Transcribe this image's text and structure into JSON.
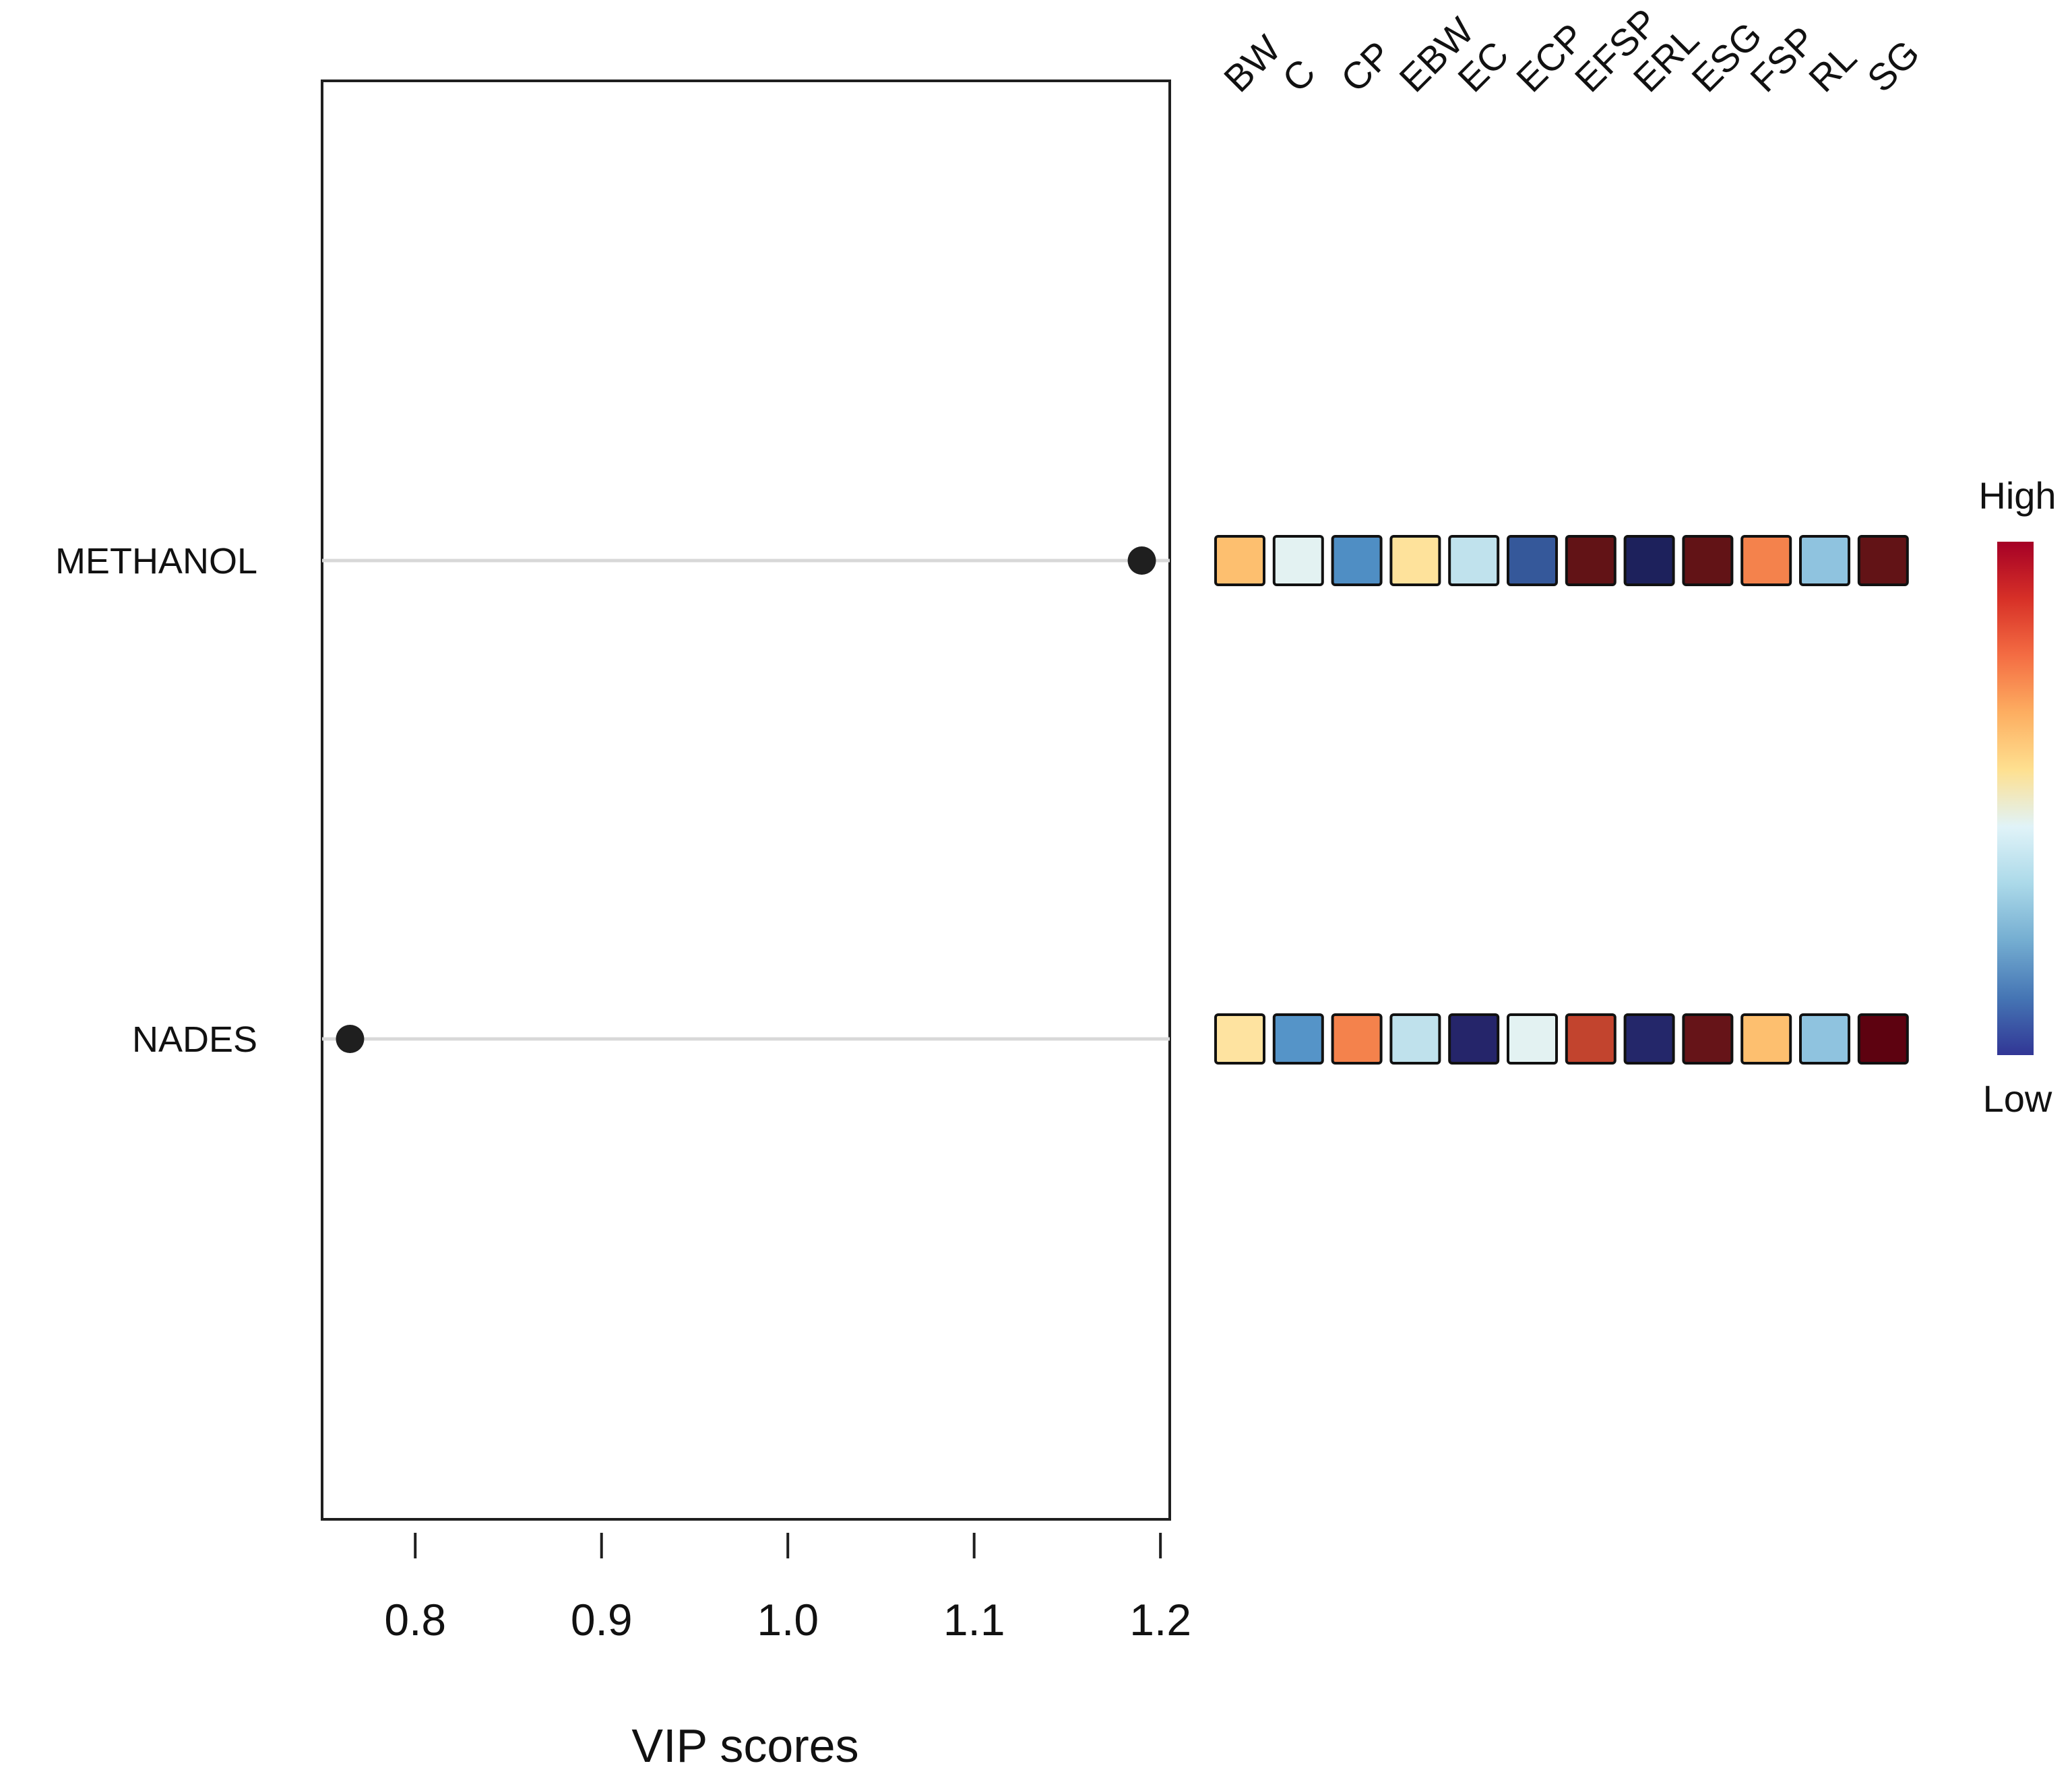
{
  "chart_data": {
    "type": "scatter",
    "xlabel": "VIP scores",
    "xlim": [
      0.75,
      1.205
    ],
    "x_ticks": [
      0.8,
      0.9,
      1.0,
      1.1,
      1.2
    ],
    "x_tick_labels": [
      "0.8",
      "0.9",
      "1.0",
      "1.1",
      "1.2"
    ],
    "categories": [
      "METHANOL",
      "NADES"
    ],
    "values": [
      1.19,
      0.765
    ],
    "heatmap": {
      "variables": [
        "BW",
        "C",
        "CP",
        "EBW",
        "EC",
        "ECP",
        "EFSP",
        "ERL",
        "ESG",
        "FSP",
        "RL",
        "SG"
      ],
      "rows": [
        {
          "name": "METHANOL",
          "colors": [
            "#fdbf6f",
            "#e3f2f2",
            "#4f8ec4",
            "#fee29b",
            "#c0e2ed",
            "#35589a",
            "#621316",
            "#1d215c",
            "#621316",
            "#f4824c",
            "#8fc3df",
            "#621316"
          ]
        },
        {
          "name": "NADES",
          "colors": [
            "#fee3a0",
            "#5594c8",
            "#f4824c",
            "#bfe1ec",
            "#25256a",
            "#e3f2f2",
            "#c2442e",
            "#24276a",
            "#661418",
            "#fdbf6f",
            "#8fc3df",
            "#5d0210"
          ]
        }
      ]
    },
    "legend": {
      "title_high": "High",
      "title_low": "Low",
      "gradient": [
        "#313695",
        "#4575b4",
        "#74add1",
        "#abd9e9",
        "#e0f3f8",
        "#fee090",
        "#fdae61",
        "#f46d43",
        "#d73027",
        "#a50026"
      ]
    }
  }
}
